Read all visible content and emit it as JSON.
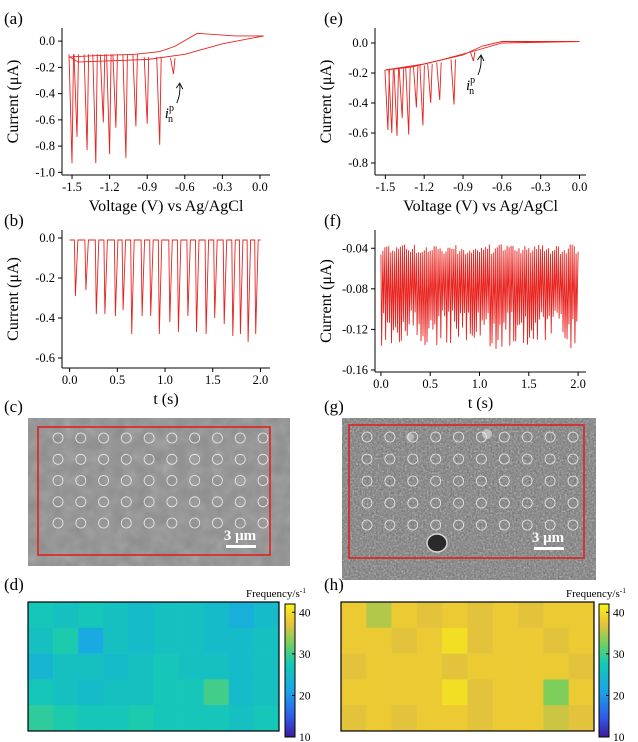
{
  "panel_letters": [
    "(a)",
    "(b)",
    "(c)",
    "(d)",
    "(e)",
    "(f)",
    "(g)",
    "(h)"
  ],
  "chart_data": [
    {
      "panel": "(a)",
      "type": "line",
      "xlabel": "Voltage (V) vs Ag/AgCl",
      "ylabel": "Current (μA)",
      "xticks": [
        "-1.5",
        "-1.2",
        "-0.9",
        "-0.6",
        "-0.3",
        "0.0"
      ],
      "yticks": [
        "0.0",
        "-0.2",
        "-0.4",
        "-0.6",
        "-0.8",
        "-1.0"
      ],
      "xlim": [
        -1.58,
        0.08
      ],
      "ylim": [
        -1.02,
        0.1
      ],
      "annotation": "i_n^p",
      "annotation_main": "i",
      "annotation_sub": "n",
      "annotation_sup": "p",
      "annotation_x": -0.68,
      "annotation_y": -0.48,
      "backward_scan": [
        [
          0.03,
          0.04
        ],
        [
          -0.3,
          -0.02
        ],
        [
          -0.6,
          -0.1
        ],
        [
          -0.9,
          -0.14
        ],
        [
          -1.2,
          -0.15
        ],
        [
          -1.45,
          -0.16
        ],
        [
          -1.52,
          -0.12
        ]
      ],
      "forward_scan": [
        [
          -1.52,
          -0.12
        ],
        [
          -1.3,
          -0.11
        ],
        [
          -1.0,
          -0.1
        ],
        [
          -0.8,
          -0.08
        ],
        [
          -0.68,
          -0.04
        ],
        [
          -0.5,
          0.06
        ],
        [
          -0.2,
          0.04
        ],
        [
          0.03,
          0.04
        ]
      ],
      "spikes": [
        {
          "x": -1.5,
          "base": -0.1,
          "peak": -0.93
        },
        {
          "x": -1.46,
          "base": -0.1,
          "peak": -0.73
        },
        {
          "x": -1.38,
          "base": -0.1,
          "peak": -0.83
        },
        {
          "x": -1.31,
          "base": -0.1,
          "peak": -0.93
        },
        {
          "x": -1.25,
          "base": -0.1,
          "peak": -0.62
        },
        {
          "x": -1.2,
          "base": -0.1,
          "peak": -0.86
        },
        {
          "x": -1.15,
          "base": -0.1,
          "peak": -0.66
        },
        {
          "x": -1.07,
          "base": -0.1,
          "peak": -0.89
        },
        {
          "x": -0.99,
          "base": -0.1,
          "peak": -0.65
        },
        {
          "x": -0.9,
          "base": -0.12,
          "peak": -0.63
        },
        {
          "x": -0.8,
          "base": -0.12,
          "peak": -0.79
        },
        {
          "x": -0.69,
          "base": -0.13,
          "peak": -0.25
        }
      ]
    },
    {
      "panel": "(e)",
      "type": "line",
      "xlabel": "Voltage (V) vs Ag/AgCl",
      "ylabel": "Current (μA)",
      "xticks": [
        "-1.5",
        "-1.2",
        "-0.9",
        "-0.6",
        "-0.3",
        "0.0"
      ],
      "yticks": [
        "0.0",
        "-0.2",
        "-0.4",
        "-0.6",
        "-0.8"
      ],
      "xlim": [
        -1.58,
        0.05
      ],
      "ylim": [
        -0.88,
        0.1
      ],
      "annotation": "i_n^p",
      "annotation_main": "i",
      "annotation_sub": "n",
      "annotation_sup": "p",
      "annotation_x": -0.8,
      "annotation_y": -0.22,
      "backward_scan": [
        [
          0.0,
          0.01
        ],
        [
          -0.6,
          0.0
        ],
        [
          -0.8,
          -0.05
        ],
        [
          -1.1,
          -0.12
        ],
        [
          -1.3,
          -0.16
        ],
        [
          -1.5,
          -0.18
        ]
      ],
      "forward_scan": [
        [
          -1.5,
          -0.18
        ],
        [
          -1.2,
          -0.14
        ],
        [
          -0.9,
          -0.08
        ],
        [
          -0.75,
          -0.02
        ],
        [
          -0.6,
          0.01
        ],
        [
          0.0,
          0.01
        ]
      ],
      "spikes": [
        {
          "x": -1.48,
          "base": -0.18,
          "peak": -0.58
        },
        {
          "x": -1.45,
          "base": -0.18,
          "peak": -0.6
        },
        {
          "x": -1.41,
          "base": -0.17,
          "peak": -0.62
        },
        {
          "x": -1.37,
          "base": -0.17,
          "peak": -0.5
        },
        {
          "x": -1.32,
          "base": -0.16,
          "peak": -0.61
        },
        {
          "x": -1.26,
          "base": -0.15,
          "peak": -0.43
        },
        {
          "x": -1.21,
          "base": -0.15,
          "peak": -0.55
        },
        {
          "x": -1.15,
          "base": -0.14,
          "peak": -0.4
        },
        {
          "x": -1.08,
          "base": -0.13,
          "peak": -0.38
        },
        {
          "x": -0.97,
          "base": -0.11,
          "peak": -0.41
        },
        {
          "x": -0.82,
          "base": -0.06,
          "peak": -0.12
        }
      ]
    },
    {
      "panel": "(b)",
      "type": "line",
      "xlabel": "t (s)",
      "ylabel": "Current (μA)",
      "xticks": [
        "0.0",
        "0.5",
        "1.0",
        "1.5",
        "2.0"
      ],
      "yticks": [
        "0.0",
        "-0.2",
        "-0.4",
        "-0.6"
      ],
      "xlim": [
        -0.08,
        2.1
      ],
      "ylim": [
        -0.65,
        0.04
      ],
      "baseline": -0.01,
      "spikes": [
        {
          "t": 0.06,
          "peak": -0.29
        },
        {
          "t": 0.17,
          "peak": -0.26
        },
        {
          "t": 0.28,
          "peak": -0.38
        },
        {
          "t": 0.37,
          "peak": -0.38
        },
        {
          "t": 0.48,
          "peak": -0.39
        },
        {
          "t": 0.56,
          "peak": -0.36
        },
        {
          "t": 0.65,
          "peak": -0.48
        },
        {
          "t": 0.76,
          "peak": -0.39
        },
        {
          "t": 0.85,
          "peak": -0.39
        },
        {
          "t": 0.94,
          "peak": -0.48
        },
        {
          "t": 1.05,
          "peak": -0.42
        },
        {
          "t": 1.14,
          "peak": -0.47
        },
        {
          "t": 1.24,
          "peak": -0.39
        },
        {
          "t": 1.33,
          "peak": -0.47
        },
        {
          "t": 1.43,
          "peak": -0.48
        },
        {
          "t": 1.52,
          "peak": -0.4
        },
        {
          "t": 1.62,
          "peak": -0.43
        },
        {
          "t": 1.71,
          "peak": -0.49
        },
        {
          "t": 1.79,
          "peak": -0.48
        },
        {
          "t": 1.87,
          "peak": -0.52
        },
        {
          "t": 1.95,
          "peak": -0.48
        }
      ]
    },
    {
      "panel": "(f)",
      "type": "line",
      "xlabel": "t (s)",
      "ylabel": "Current (μA)",
      "xticks": [
        "0.0",
        "0.5",
        "1.0",
        "1.5",
        "2.0"
      ],
      "yticks": [
        "-0.04",
        "-0.08",
        "-0.12",
        "-0.16"
      ],
      "xlim": [
        -0.06,
        2.08
      ],
      "ylim": [
        -0.162,
        -0.022
      ],
      "baseline_range": [
        -0.04,
        -0.05
      ],
      "peak_range": [
        -0.1,
        -0.14
      ],
      "spike_count": 100,
      "t_end": 2.0
    },
    {
      "panel": "(d)",
      "type": "heatmap",
      "colorbar_label": "Frequency/s",
      "colorbar_exp": "-1",
      "colorbar_ticks": [
        "40",
        "30",
        "20",
        "10"
      ],
      "vmin": 10,
      "vmax": 42,
      "rows": 5,
      "cols": 10,
      "values": [
        [
          27,
          26,
          27,
          26,
          25,
          26,
          26,
          25,
          23,
          25
        ],
        [
          26,
          28,
          22,
          26,
          25,
          26,
          26,
          25,
          25,
          26
        ],
        [
          24,
          26,
          26,
          25,
          26,
          27,
          26,
          26,
          25,
          26
        ],
        [
          27,
          26,
          25,
          26,
          26,
          27,
          27,
          30,
          25,
          26
        ],
        [
          29,
          28,
          27,
          27,
          28,
          27,
          27,
          27,
          26,
          27
        ]
      ]
    },
    {
      "panel": "(h)",
      "type": "heatmap",
      "colorbar_label": "Frequency/s",
      "colorbar_exp": "-1",
      "colorbar_ticks": [
        "40",
        "30",
        "20",
        "10"
      ],
      "vmin": 10,
      "vmax": 42,
      "rows": 5,
      "cols": 10,
      "values": [
        [
          38,
          35,
          38,
          37,
          38,
          37,
          38,
          37,
          38,
          38
        ],
        [
          38,
          38,
          37,
          38,
          40,
          37,
          38,
          38,
          37,
          38
        ],
        [
          37,
          38,
          38,
          38,
          37,
          38,
          38,
          38,
          38,
          37
        ],
        [
          38,
          38,
          38,
          38,
          40,
          37,
          38,
          38,
          33,
          38
        ],
        [
          37,
          38,
          37,
          38,
          38,
          37,
          38,
          38,
          36,
          37
        ]
      ]
    }
  ],
  "sem": [
    {
      "panel": "(c)",
      "scale_bar_label": "3 μm",
      "rows": 5,
      "cols": 10,
      "texture": "smooth"
    },
    {
      "panel": "(g)",
      "scale_bar_label": "3 μm",
      "rows": 5,
      "cols": 10,
      "texture": "rough"
    }
  ],
  "colors": {
    "trace": "#e8231f",
    "roi": "#e02020",
    "sem_smooth": "#8f8f8f",
    "sem_rough": "#6c6c6c"
  }
}
